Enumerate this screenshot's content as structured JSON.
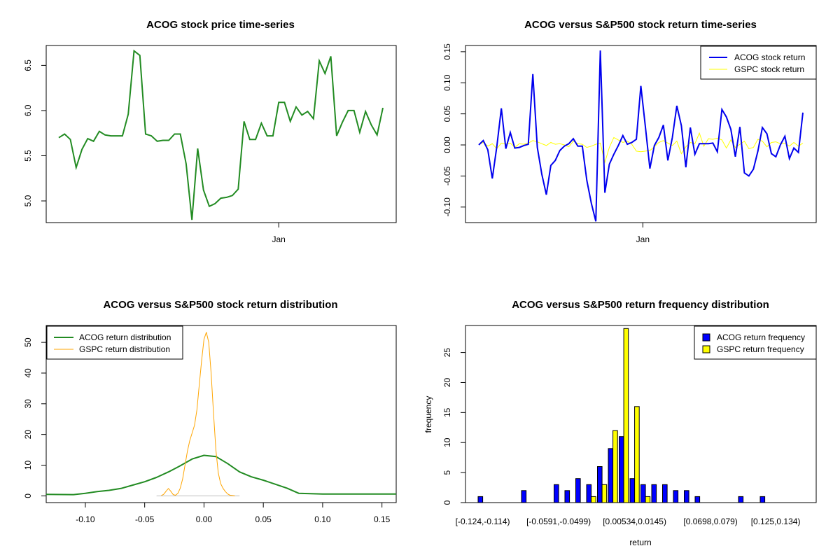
{
  "chart_data": [
    {
      "type": "line",
      "title": "ACOG stock price time-series",
      "xlabel": "",
      "ylabel": "",
      "x_ticks": [
        "Jan"
      ],
      "x_tick_index": 38,
      "ylim": [
        4.76,
        6.72
      ],
      "y_ticks": [
        5.0,
        5.5,
        6.0,
        6.5
      ],
      "y_tick_labels": [
        "5.0",
        "5.5",
        "6.0",
        "6.5"
      ],
      "color": "#228B22",
      "series": [
        {
          "values": [
            5.7,
            5.74,
            5.68,
            5.37,
            5.57,
            5.69,
            5.66,
            5.77,
            5.73,
            5.72,
            5.72,
            5.72,
            5.96,
            6.66,
            6.61,
            5.74,
            5.72,
            5.66,
            5.67,
            5.67,
            5.74,
            5.74,
            5.41,
            4.79,
            5.58,
            5.12,
            4.94,
            4.97,
            5.03,
            5.04,
            5.06,
            5.13,
            5.88,
            5.68,
            5.68,
            5.86,
            5.72,
            5.72,
            6.09,
            6.09,
            5.88,
            6.04,
            5.95,
            5.99,
            5.91,
            6.55,
            6.41,
            6.6,
            5.72,
            5.87,
            6.0,
            6.0,
            5.76,
            5.99,
            5.84,
            5.73,
            6.03
          ]
        }
      ]
    },
    {
      "type": "line",
      "title": "ACOG versus S&P500 stock return time-series",
      "xlabel": "",
      "ylabel": "",
      "x_ticks": [
        "Jan"
      ],
      "x_tick_index": 38,
      "ylim": [
        -0.125,
        0.16
      ],
      "y_ticks": [
        -0.1,
        -0.05,
        0.0,
        0.05,
        0.1,
        0.15
      ],
      "y_tick_labels": [
        "-0.10",
        "-0.05",
        "0.00",
        "0.05",
        "0.10",
        "0.15"
      ],
      "legend_position": "top-right",
      "series": [
        {
          "name": "ACOG stock return",
          "color": "#0000EE",
          "values": [
            0.0,
            0.007,
            -0.008,
            -0.054,
            -0.003,
            0.059,
            -0.006,
            0.02,
            -0.005,
            -0.004,
            -0.001,
            0.001,
            0.114,
            -0.004,
            -0.047,
            -0.08,
            -0.033,
            -0.025,
            -0.009,
            -0.002,
            0.002,
            0.01,
            -0.002,
            -0.002,
            -0.057,
            -0.094,
            -0.123,
            0.152,
            -0.077,
            -0.031,
            -0.015,
            -0.001,
            0.015,
            0.001,
            0.004,
            0.009,
            0.095,
            0.03,
            -0.038,
            -0.001,
            0.012,
            0.032,
            -0.025,
            0.012,
            0.063,
            0.031,
            -0.036,
            0.028,
            -0.015,
            0.002,
            0.002,
            0.002,
            0.003,
            -0.011,
            0.057,
            0.045,
            0.025,
            -0.019,
            0.029,
            -0.045,
            -0.05,
            -0.039,
            -0.01,
            0.028,
            0.018,
            -0.014,
            -0.019,
            0.0,
            0.014,
            -0.022,
            -0.005,
            -0.012,
            0.052
          ]
        },
        {
          "name": "GSPC stock return",
          "color": "#FFFF00",
          "values": [
            0.001,
            0.004,
            -0.002,
            0.002,
            -0.006,
            0.003,
            0.001,
            0.003,
            -0.004,
            0.002,
            0.001,
            0.003,
            0.007,
            0.005,
            0.002,
            -0.001,
            0.004,
            0.001,
            0.002,
            0.0,
            -0.003,
            0.006,
            0.002,
            0.001,
            -0.004,
            -0.002,
            0.001,
            0.003,
            -0.028,
            -0.004,
            0.012,
            0.008,
            0.004,
            0.006,
            0.001,
            -0.01,
            -0.011,
            -0.01,
            -0.009,
            -0.003,
            0.004,
            0.007,
            0.003,
            -0.001,
            0.006,
            -0.014,
            -0.003,
            0.004,
            0.002,
            0.019,
            -0.002,
            0.01,
            0.009,
            0.011,
            0.008,
            -0.005,
            0.008,
            -0.004,
            0.001,
            0.006,
            -0.006,
            -0.004,
            0.009,
            0.006,
            -0.003,
            0.004,
            0.005,
            0.002,
            0.003,
            -0.002,
            0.004,
            -0.002,
            0.003
          ]
        }
      ]
    },
    {
      "type": "line",
      "title": "ACOG versus S&P500 stock return distribution",
      "xlabel": "",
      "ylabel": "",
      "xlim": [
        -0.133,
        0.162
      ],
      "ylim": [
        -2.2,
        55.5
      ],
      "x_ticks": [
        -0.1,
        -0.05,
        0.0,
        0.05,
        0.1,
        0.15
      ],
      "x_tick_labels": [
        "-0.10",
        "-0.05",
        "0.00",
        "0.05",
        "0.10",
        "0.15"
      ],
      "y_ticks": [
        0,
        10,
        20,
        30,
        40,
        50
      ],
      "y_tick_labels": [
        "0",
        "10",
        "20",
        "30",
        "40",
        "50"
      ],
      "legend_position": "top-left",
      "baseline_color": "#BEBEBE",
      "series": [
        {
          "name": "ACOG return distribution",
          "color": "#228B22",
          "x": [
            -0.133,
            -0.11,
            -0.1,
            -0.09,
            -0.08,
            -0.07,
            -0.06,
            -0.05,
            -0.04,
            -0.03,
            -0.02,
            -0.01,
            0.0,
            0.01,
            0.02,
            0.03,
            0.04,
            0.05,
            0.06,
            0.07,
            0.08,
            0.1,
            0.12,
            0.14,
            0.162
          ],
          "y": [
            0.5,
            0.4,
            0.8,
            1.4,
            1.8,
            2.4,
            3.5,
            4.6,
            6.0,
            7.8,
            9.8,
            12.0,
            13.2,
            12.8,
            10.5,
            7.8,
            6.2,
            5.1,
            3.8,
            2.5,
            0.8,
            0.6,
            0.6,
            0.6,
            0.6
          ]
        },
        {
          "name": "GSPC return distribution",
          "color": "#FFA500",
          "x": [
            -0.036,
            -0.034,
            -0.032,
            -0.03,
            -0.028,
            -0.026,
            -0.024,
            -0.022,
            -0.02,
            -0.018,
            -0.016,
            -0.014,
            -0.012,
            -0.01,
            -0.008,
            -0.006,
            -0.004,
            -0.002,
            0.0,
            0.002,
            0.004,
            0.006,
            0.008,
            0.01,
            0.012,
            0.014,
            0.016,
            0.018,
            0.02,
            0.022,
            0.024,
            0.026
          ],
          "y": [
            0.1,
            0.5,
            1.5,
            2.4,
            1.5,
            0.4,
            0.2,
            0.8,
            2.5,
            5.5,
            10.0,
            14.5,
            18.0,
            20.5,
            23.0,
            28.0,
            36.0,
            44.0,
            51.0,
            53.3,
            50.0,
            40.0,
            27.0,
            15.0,
            7.5,
            4.0,
            2.5,
            1.4,
            0.6,
            0.2,
            0.1,
            0.0
          ]
        }
      ]
    },
    {
      "type": "bar",
      "title": "ACOG versus S&P500 return frequency distribution",
      "xlabel": "return",
      "ylabel": "frequency",
      "ylim": [
        0,
        29.5
      ],
      "y_ticks": [
        0,
        5,
        10,
        15,
        20,
        25
      ],
      "y_tick_labels": [
        "0",
        "5",
        "10",
        "15",
        "20",
        "25"
      ],
      "x_tick_labels": [
        "[-0.124,-0.114)",
        "[-0.0591,-0.0499)",
        "[0.00534,0.0145)",
        "[0.0698,0.079)",
        "[0.125,0.134)"
      ],
      "x_tick_label_bins": [
        0,
        7,
        14,
        21,
        27
      ],
      "legend_position": "top-right",
      "series": [
        {
          "name": "ACOG return frequency",
          "color": "#0000FF",
          "values": [
            1,
            0,
            0,
            0,
            2,
            0,
            0,
            3,
            2,
            4,
            3,
            6,
            9,
            11,
            4,
            3,
            3,
            3,
            2,
            2,
            1,
            0,
            0,
            0,
            1,
            0,
            1,
            0,
            0,
            0
          ]
        },
        {
          "name": "GSPC return frequency",
          "color": "#FFFF00",
          "values": [
            0,
            0,
            0,
            0,
            0,
            0,
            0,
            0,
            0,
            0,
            1,
            3,
            12,
            29,
            16,
            1,
            0,
            0,
            0,
            0,
            0,
            0,
            0,
            0,
            0,
            0,
            0,
            0,
            0,
            0
          ]
        }
      ]
    }
  ]
}
